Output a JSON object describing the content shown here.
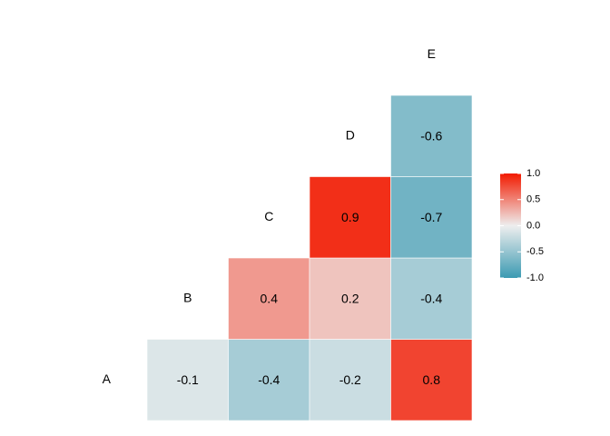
{
  "chart_data": {
    "type": "heatmap",
    "variables": [
      "A",
      "B",
      "C",
      "D",
      "E"
    ],
    "values": [
      [
        null,
        -0.1,
        -0.4,
        -0.2,
        0.8
      ],
      [
        null,
        null,
        0.4,
        0.2,
        -0.4
      ],
      [
        null,
        null,
        null,
        0.9,
        -0.7
      ],
      [
        null,
        null,
        null,
        null,
        -0.6
      ],
      [
        null,
        null,
        null,
        null,
        null
      ]
    ],
    "palette": [
      "#3B9AB2",
      "#EEEEEE",
      "#F21A00"
    ],
    "clim": [
      -1,
      1
    ],
    "cticks": [
      {
        "value": 1,
        "label": "1.0"
      },
      0.5,
      {
        "value": 0,
        "label": "0.0"
      },
      -0.5,
      {
        "value": -1,
        "label": "-1.0"
      }
    ]
  }
}
